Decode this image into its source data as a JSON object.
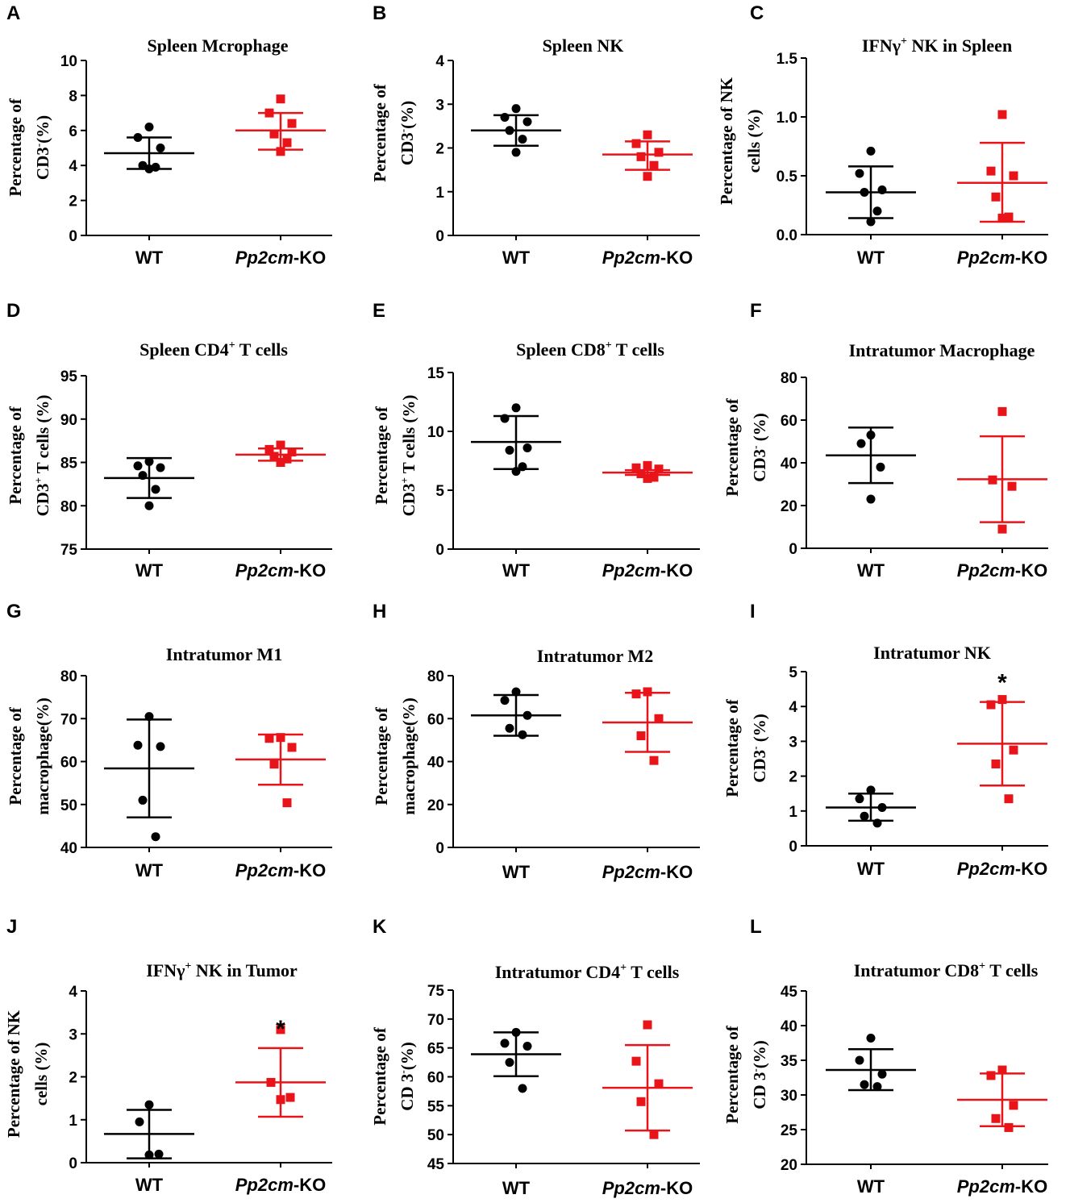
{
  "colors": {
    "wt": "#000000",
    "ko": "#e8141a"
  },
  "chart_data": [
    {
      "id": "A",
      "type": "scatter",
      "title": "Spleen Mcrophage",
      "ylabel_lines": [
        [
          "Percentage of"
        ],
        [
          "CD3",
          "-",
          "(%)"
        ]
      ],
      "ylim": [
        0,
        10
      ],
      "yticks": [
        "0",
        "2",
        "4",
        "6",
        "8",
        "10"
      ],
      "categories": [
        "WT",
        "Pp2cm-KO"
      ],
      "series": [
        {
          "name": "WT",
          "mean": 4.7,
          "sd_low": 3.8,
          "sd_high": 5.6,
          "points": [
            6.2,
            5.6,
            5.0,
            4.0,
            3.9,
            3.8
          ]
        },
        {
          "name": "Pp2cm-KO",
          "mean": 6.0,
          "sd_low": 4.9,
          "sd_high": 7.0,
          "points": [
            7.8,
            7.0,
            6.4,
            5.8,
            5.3,
            4.8
          ]
        }
      ],
      "significance": [
        "",
        ""
      ]
    },
    {
      "id": "B",
      "type": "scatter",
      "title": "Spleen NK",
      "ylabel_lines": [
        [
          "Percentage of"
        ],
        [
          "CD3",
          "-",
          "(%)"
        ]
      ],
      "ylim": [
        0,
        4
      ],
      "yticks": [
        "0",
        "1",
        "2",
        "3",
        "4"
      ],
      "categories": [
        "WT",
        "Pp2cm-KO"
      ],
      "series": [
        {
          "name": "WT",
          "mean": 2.4,
          "sd_low": 2.05,
          "sd_high": 2.75,
          "points": [
            2.9,
            2.7,
            2.6,
            2.4,
            2.2,
            1.9
          ]
        },
        {
          "name": "Pp2cm-KO",
          "mean": 1.85,
          "sd_low": 1.5,
          "sd_high": 2.15,
          "points": [
            2.3,
            2.1,
            1.9,
            1.8,
            1.6,
            1.35
          ]
        }
      ],
      "significance": [
        "",
        ""
      ]
    },
    {
      "id": "C",
      "type": "scatter",
      "title_parts": [
        "IFNγ",
        "+",
        " NK in Spleen"
      ],
      "ylabel_lines": [
        [
          "Percentage of NK"
        ],
        [
          "cells (%)"
        ]
      ],
      "ylim": [
        0,
        1.5
      ],
      "yticks": [
        "0.0",
        "0.5",
        "1.0",
        "1.5"
      ],
      "categories": [
        "WT",
        "Pp2cm-KO"
      ],
      "series": [
        {
          "name": "WT",
          "mean": 0.36,
          "sd_low": 0.14,
          "sd_high": 0.58,
          "points": [
            0.71,
            0.52,
            0.38,
            0.36,
            0.2,
            0.11
          ]
        },
        {
          "name": "Pp2cm-KO",
          "mean": 0.44,
          "sd_low": 0.11,
          "sd_high": 0.78,
          "points": [
            1.02,
            0.54,
            0.5,
            0.32,
            0.15,
            0.14
          ]
        }
      ],
      "significance": [
        "",
        ""
      ]
    },
    {
      "id": "D",
      "type": "scatter",
      "title_parts": [
        "Spleen CD4",
        "+",
        " T cells"
      ],
      "ylabel_lines": [
        [
          "Percentage of"
        ],
        [
          "CD3",
          "+",
          " T cells (%)"
        ]
      ],
      "ylim": [
        75,
        95
      ],
      "yticks": [
        "75",
        "80",
        "85",
        "90",
        "95"
      ],
      "categories": [
        "WT",
        "Pp2cm-KO"
      ],
      "series": [
        {
          "name": "WT",
          "mean": 83.2,
          "sd_low": 80.9,
          "sd_high": 85.5,
          "points": [
            85.1,
            84.6,
            84.4,
            83.5,
            81.9,
            80.0
          ]
        },
        {
          "name": "Pp2cm-KO",
          "mean": 85.9,
          "sd_low": 85.2,
          "sd_high": 86.6,
          "points": [
            87.0,
            86.5,
            86.2,
            85.7,
            85.4,
            85.0
          ]
        }
      ],
      "significance": [
        "",
        ""
      ]
    },
    {
      "id": "E",
      "type": "scatter",
      "title_parts": [
        "Spleen CD8",
        "+",
        " T cells"
      ],
      "ylabel_lines": [
        [
          "Percentage of"
        ],
        [
          "CD3",
          "+",
          " T cells (%)"
        ]
      ],
      "ylim": [
        0,
        15
      ],
      "yticks": [
        "0",
        "5",
        "10",
        "15"
      ],
      "categories": [
        "WT",
        "Pp2cm-KO"
      ],
      "series": [
        {
          "name": "WT",
          "mean": 9.1,
          "sd_low": 6.8,
          "sd_high": 11.3,
          "points": [
            12.0,
            11.1,
            8.6,
            8.4,
            7.0,
            6.6
          ]
        },
        {
          "name": "Pp2cm-KO",
          "mean": 6.5,
          "sd_low": 6.3,
          "sd_high": 6.7,
          "points": [
            7.1,
            6.9,
            6.8,
            6.4,
            6.1,
            6.0
          ]
        }
      ],
      "significance": [
        "",
        ""
      ]
    },
    {
      "id": "F",
      "type": "scatter",
      "title": "Intratumor Macrophage",
      "ylabel_lines": [
        [
          "Percentage of"
        ],
        [
          "CD3",
          "-",
          " (%)"
        ]
      ],
      "ylim": [
        0,
        80
      ],
      "yticks": [
        "0",
        "20",
        "40",
        "60",
        "80"
      ],
      "categories": [
        "WT",
        "Pp2cm-KO"
      ],
      "series": [
        {
          "name": "WT",
          "mean": 43.5,
          "sd_low": 30.5,
          "sd_high": 56.5,
          "points": [
            53,
            49,
            38,
            23
          ]
        },
        {
          "name": "Pp2cm-KO",
          "mean": 32.3,
          "sd_low": 12.2,
          "sd_high": 52.4,
          "points": [
            64,
            32,
            29,
            9
          ]
        }
      ],
      "significance": [
        "",
        ""
      ]
    },
    {
      "id": "G",
      "type": "scatter",
      "title": "Intratumor M1",
      "ylabel_lines": [
        [
          "Percentage of"
        ],
        [
          "macrophage(%)"
        ]
      ],
      "ylim": [
        40,
        80
      ],
      "yticks": [
        "40",
        "50",
        "60",
        "70",
        "80"
      ],
      "categories": [
        "WT",
        "Pp2cm-KO"
      ],
      "series": [
        {
          "name": "WT",
          "mean": 58.4,
          "sd_low": 47.0,
          "sd_high": 69.8,
          "points": [
            70.5,
            63.8,
            63.5,
            51.0,
            42.5
          ]
        },
        {
          "name": "Pp2cm-KO",
          "mean": 60.5,
          "sd_low": 54.6,
          "sd_high": 66.3,
          "points": [
            65.6,
            65.4,
            63.3,
            59.4,
            50.4
          ]
        }
      ],
      "significance": [
        "",
        ""
      ]
    },
    {
      "id": "H",
      "type": "scatter",
      "title": "Intratumor M2",
      "ylabel_lines": [
        [
          "Percentage of"
        ],
        [
          "macrophage(%)"
        ]
      ],
      "ylim": [
        0,
        80
      ],
      "yticks": [
        "0",
        "20",
        "40",
        "60",
        "80"
      ],
      "categories": [
        "WT",
        "Pp2cm-KO"
      ],
      "series": [
        {
          "name": "WT",
          "mean": 61.5,
          "sd_low": 52.0,
          "sd_high": 71.0,
          "points": [
            72.5,
            68.5,
            61.5,
            55.5,
            52.5
          ]
        },
        {
          "name": "Pp2cm-KO",
          "mean": 58.2,
          "sd_low": 44.5,
          "sd_high": 72.0,
          "points": [
            72.5,
            71.5,
            60.0,
            52.0,
            40.5
          ]
        }
      ],
      "significance": [
        "",
        ""
      ]
    },
    {
      "id": "I",
      "type": "scatter",
      "title": "Intratumor NK",
      "ylabel_lines": [
        [
          "Percentage of"
        ],
        [
          "CD3",
          "-",
          " (%)"
        ]
      ],
      "ylim": [
        0,
        5
      ],
      "yticks": [
        "0",
        "1",
        "2",
        "3",
        "4",
        "5"
      ],
      "categories": [
        "WT",
        "Pp2cm-KO"
      ],
      "series": [
        {
          "name": "WT",
          "mean": 1.1,
          "sd_low": 0.72,
          "sd_high": 1.5,
          "points": [
            1.6,
            1.35,
            1.1,
            0.85,
            0.65
          ]
        },
        {
          "name": "Pp2cm-KO",
          "mean": 2.93,
          "sd_low": 1.73,
          "sd_high": 4.13,
          "points": [
            4.2,
            4.05,
            2.75,
            2.35,
            1.35
          ]
        }
      ],
      "significance": [
        "",
        "*"
      ]
    },
    {
      "id": "J",
      "type": "scatter",
      "title_parts": [
        "IFNγ",
        "+",
        " NK in Tumor"
      ],
      "ylabel_lines": [
        [
          "Percentage of NK"
        ],
        [
          "cells (%)"
        ]
      ],
      "ylim": [
        0,
        4
      ],
      "yticks": [
        "0",
        "1",
        "2",
        "3",
        "4"
      ],
      "categories": [
        "WT",
        "Pp2cm-KO"
      ],
      "series": [
        {
          "name": "WT",
          "mean": 0.67,
          "sd_low": 0.1,
          "sd_high": 1.23,
          "points": [
            1.35,
            0.95,
            0.2,
            0.18
          ]
        },
        {
          "name": "Pp2cm-KO",
          "mean": 1.87,
          "sd_low": 1.07,
          "sd_high": 2.67,
          "points": [
            3.1,
            1.87,
            1.52,
            1.47
          ]
        }
      ],
      "significance": [
        "",
        "*"
      ]
    },
    {
      "id": "K",
      "type": "scatter",
      "title_parts": [
        "Intratumor CD4",
        "+",
        " T cells"
      ],
      "ylabel_lines": [
        [
          "Percentage of"
        ],
        [
          "CD 3",
          "-",
          "(%)"
        ]
      ],
      "ylim": [
        45,
        75
      ],
      "yticks": [
        "45",
        "50",
        "55",
        "60",
        "65",
        "70",
        "75"
      ],
      "categories": [
        "WT",
        "Pp2cm-KO"
      ],
      "series": [
        {
          "name": "WT",
          "mean": 63.9,
          "sd_low": 60.1,
          "sd_high": 67.7,
          "points": [
            67.7,
            65.8,
            65.3,
            62.5,
            58.0
          ]
        },
        {
          "name": "Pp2cm-KO",
          "mean": 58.1,
          "sd_low": 50.7,
          "sd_high": 65.5,
          "points": [
            69.0,
            62.7,
            58.8,
            55.7,
            50.0
          ]
        }
      ],
      "significance": [
        "",
        ""
      ]
    },
    {
      "id": "L",
      "type": "scatter",
      "title_parts": [
        "Intratumor CD8",
        "+",
        " T cells"
      ],
      "ylabel_lines": [
        [
          "Percentage of"
        ],
        [
          "CD 3",
          "-",
          "(%)"
        ]
      ],
      "ylim": [
        20,
        45
      ],
      "yticks": [
        "20",
        "25",
        "30",
        "35",
        "40",
        "45"
      ],
      "categories": [
        "WT",
        "Pp2cm-KO"
      ],
      "series": [
        {
          "name": "WT",
          "mean": 33.6,
          "sd_low": 30.7,
          "sd_high": 36.6,
          "points": [
            38.2,
            35.0,
            33.0,
            31.5,
            31.2
          ]
        },
        {
          "name": "Pp2cm-KO",
          "mean": 29.3,
          "sd_low": 25.5,
          "sd_high": 33.1,
          "points": [
            33.6,
            32.8,
            28.5,
            26.6,
            25.3
          ]
        }
      ],
      "significance": [
        "",
        ""
      ]
    }
  ]
}
